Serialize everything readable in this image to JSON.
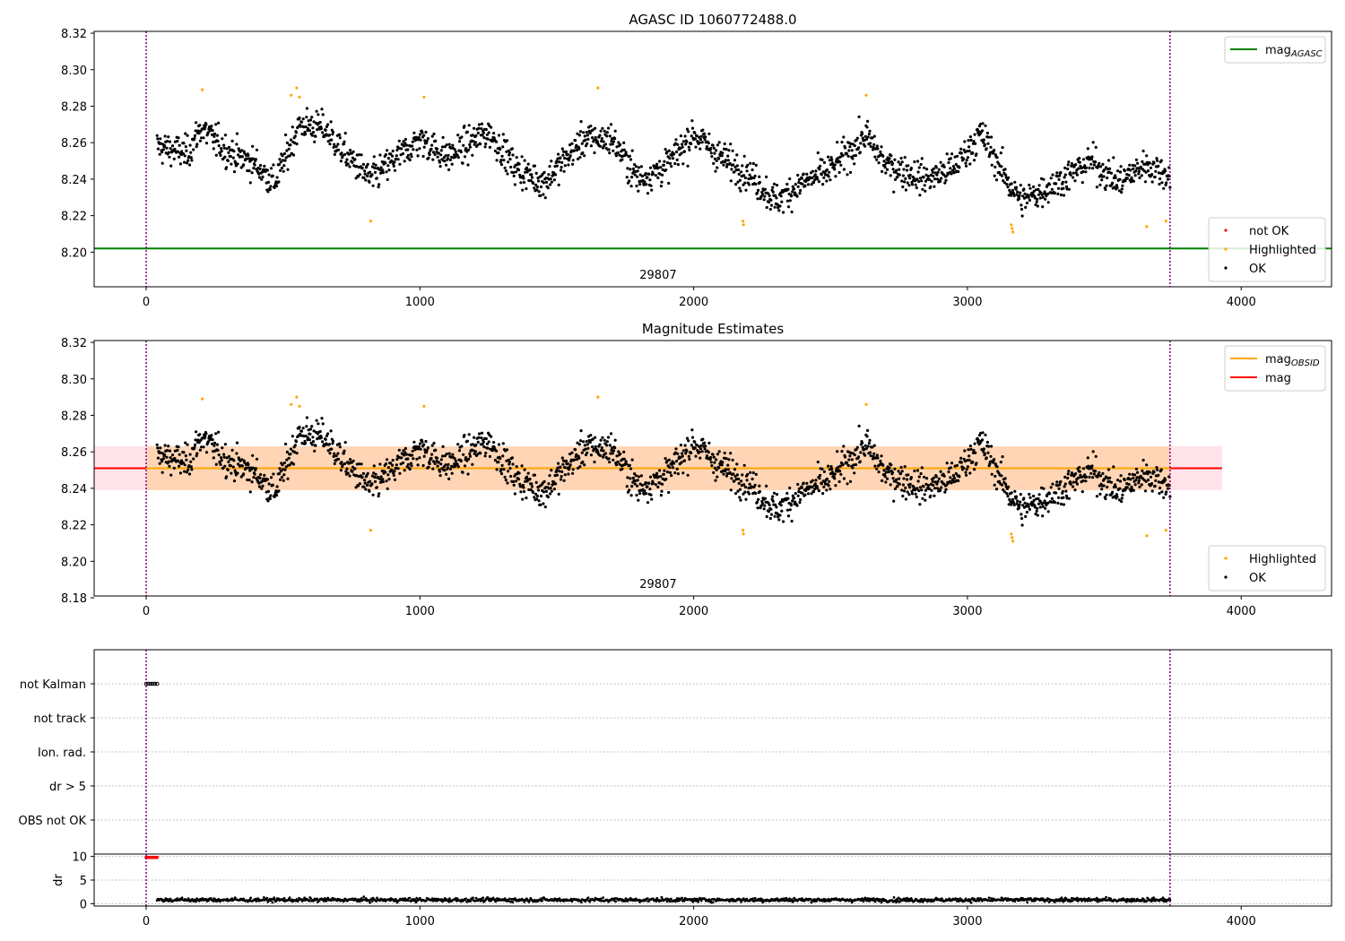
{
  "chart_data": [
    {
      "type": "scatter",
      "title": "AGASC ID 1060772488.0",
      "xlim": [
        -190,
        4330
      ],
      "ylim": [
        8.181,
        8.321
      ],
      "xticks": [
        0,
        1000,
        2000,
        3000,
        4000
      ],
      "yticks": [
        8.2,
        8.22,
        8.24,
        8.26,
        8.28,
        8.3,
        8.32
      ],
      "vlines": [
        0,
        3740
      ],
      "obsid_label": {
        "text": "29807",
        "x": 1870
      },
      "hlines": [
        {
          "name": "mag_AGASC",
          "y": 8.202,
          "color": "#008000"
        }
      ],
      "series": [
        {
          "name": "not OK",
          "color": "#ff0000",
          "points": []
        },
        {
          "name": "Highlighted",
          "color": "#ffa500",
          "points": [
            [
              205,
              8.289
            ],
            [
              530,
              8.286
            ],
            [
              550,
              8.29
            ],
            [
              560,
              8.285
            ],
            [
              820,
              8.217
            ],
            [
              1015,
              8.285
            ],
            [
              1650,
              8.29
            ],
            [
              2180,
              8.217
            ],
            [
              2182,
              8.215
            ],
            [
              2630,
              8.286
            ],
            [
              3160,
              8.215
            ],
            [
              3163,
              8.213
            ],
            [
              3166,
              8.211
            ],
            [
              3655,
              8.214
            ],
            [
              3725,
              8.217
            ]
          ]
        },
        {
          "name": "OK",
          "color": "#000000",
          "trend": "main"
        }
      ],
      "legends": [
        {
          "position": "upper-right",
          "entries": [
            {
              "label": "mag",
              "sub": "AGASC",
              "type": "line",
              "color": "#008000"
            }
          ]
        },
        {
          "position": "lower-right",
          "entries": [
            {
              "label": "not OK",
              "type": "dot",
              "color": "#ff0000"
            },
            {
              "label": "Highlighted",
              "type": "dot",
              "color": "#ffa500"
            },
            {
              "label": "OK",
              "type": "dot",
              "color": "#000000"
            }
          ]
        }
      ]
    },
    {
      "type": "scatter",
      "title": "Magnitude Estimates",
      "xlim": [
        -190,
        4330
      ],
      "ylim": [
        8.181,
        8.321
      ],
      "xticks": [
        0,
        1000,
        2000,
        3000,
        4000
      ],
      "yticks": [
        8.18,
        8.2,
        8.22,
        8.24,
        8.26,
        8.28,
        8.3,
        8.32
      ],
      "vlines": [
        0,
        3740
      ],
      "obsid_label": {
        "text": "29807",
        "x": 1870
      },
      "bands": [
        {
          "name": "mag",
          "y0": 8.239,
          "y1": 8.263,
          "x0": -190,
          "x1": 3930,
          "color": "#ffc0cb",
          "opacity": 0.45
        },
        {
          "name": "mag_OBSID",
          "y0": 8.239,
          "y1": 8.263,
          "x0": 0,
          "x1": 3740,
          "color": "#ffa500",
          "opacity": 0.22
        }
      ],
      "hlines": [
        {
          "name": "mag",
          "y": 8.251,
          "x0": -190,
          "x1": 3930,
          "color": "#ff0000"
        },
        {
          "name": "mag_OBSID",
          "y": 8.251,
          "x0": 0,
          "x1": 3740,
          "color": "#ffa500"
        }
      ],
      "series": [
        {
          "name": "Highlighted",
          "color": "#ffa500",
          "points": [
            [
              205,
              8.289
            ],
            [
              530,
              8.286
            ],
            [
              550,
              8.29
            ],
            [
              560,
              8.285
            ],
            [
              820,
              8.217
            ],
            [
              1015,
              8.285
            ],
            [
              1650,
              8.29
            ],
            [
              2180,
              8.217
            ],
            [
              2182,
              8.215
            ],
            [
              2630,
              8.286
            ],
            [
              3160,
              8.215
            ],
            [
              3163,
              8.213
            ],
            [
              3166,
              8.211
            ],
            [
              3655,
              8.214
            ],
            [
              3725,
              8.217
            ]
          ]
        },
        {
          "name": "OK",
          "color": "#000000",
          "trend": "main"
        }
      ],
      "legends": [
        {
          "position": "upper-right",
          "entries": [
            {
              "label": "mag",
              "sub": "OBSID",
              "type": "line",
              "color": "#ffa500"
            },
            {
              "label": "mag",
              "type": "line",
              "color": "#ff0000"
            }
          ]
        },
        {
          "position": "lower-right",
          "entries": [
            {
              "label": "Highlighted",
              "type": "dot",
              "color": "#ffa500"
            },
            {
              "label": "OK",
              "type": "dot",
              "color": "#000000"
            }
          ]
        }
      ]
    },
    {
      "type": "scatter",
      "xlim": [
        -190,
        4330
      ],
      "categories": [
        "not Kalman",
        "not track",
        "Ion. rad.",
        "dr > 5",
        "OBS not OK"
      ],
      "vlines": [
        0,
        3740
      ],
      "flags": [
        {
          "category": "not Kalman",
          "x0": 0,
          "x1": 40
        }
      ]
    },
    {
      "type": "scatter",
      "ylabel": "dr",
      "xlim": [
        -190,
        4330
      ],
      "ylim": [
        -0.5,
        10.5
      ],
      "xticks": [
        0,
        1000,
        2000,
        3000,
        4000
      ],
      "yticks": [
        0,
        5,
        10
      ],
      "vlines": [
        0,
        3740
      ],
      "series": [
        {
          "name": "dr > 5",
          "color": "#ff0000",
          "points_range": [
            0,
            40
          ],
          "y": 9.8
        },
        {
          "name": "dr",
          "color": "#000000",
          "range": [
            40,
            3740
          ],
          "y_mean": 0.8
        }
      ]
    }
  ]
}
